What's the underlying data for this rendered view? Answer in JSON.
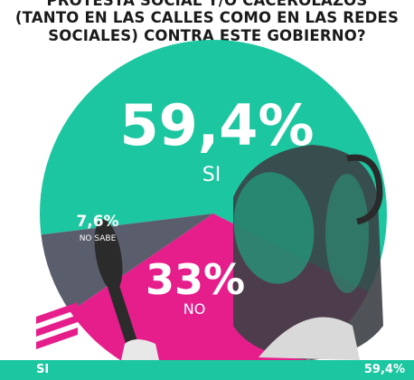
{
  "question": {
    "line1": "PROTESTA SOCIAL Y/O CACEROLAZOS",
    "line2": "(TANTO EN LAS CALLES COMO EN LAS REDES",
    "line3": "SOCIALES) CONTRA ESTE GOBIERNO?"
  },
  "colors": {
    "si": "#1cc6a0",
    "no": "#e61e8c",
    "no_sabe": "#5a5d6c"
  },
  "icons": [
    "brand-logo-stripes-icon",
    "cooking-pot-icon",
    "wooden-spoon-icon"
  ],
  "chart_data": {
    "type": "pie",
    "slices": [
      {
        "label": "SI",
        "value": 59.4,
        "display": "59,4%"
      },
      {
        "label": "NO",
        "value": 33,
        "display": "33%"
      },
      {
        "label": "NO SABE",
        "value": 7.6,
        "display": "7,6%"
      }
    ]
  },
  "footer": {
    "label": "SI",
    "value": "59,4%"
  }
}
